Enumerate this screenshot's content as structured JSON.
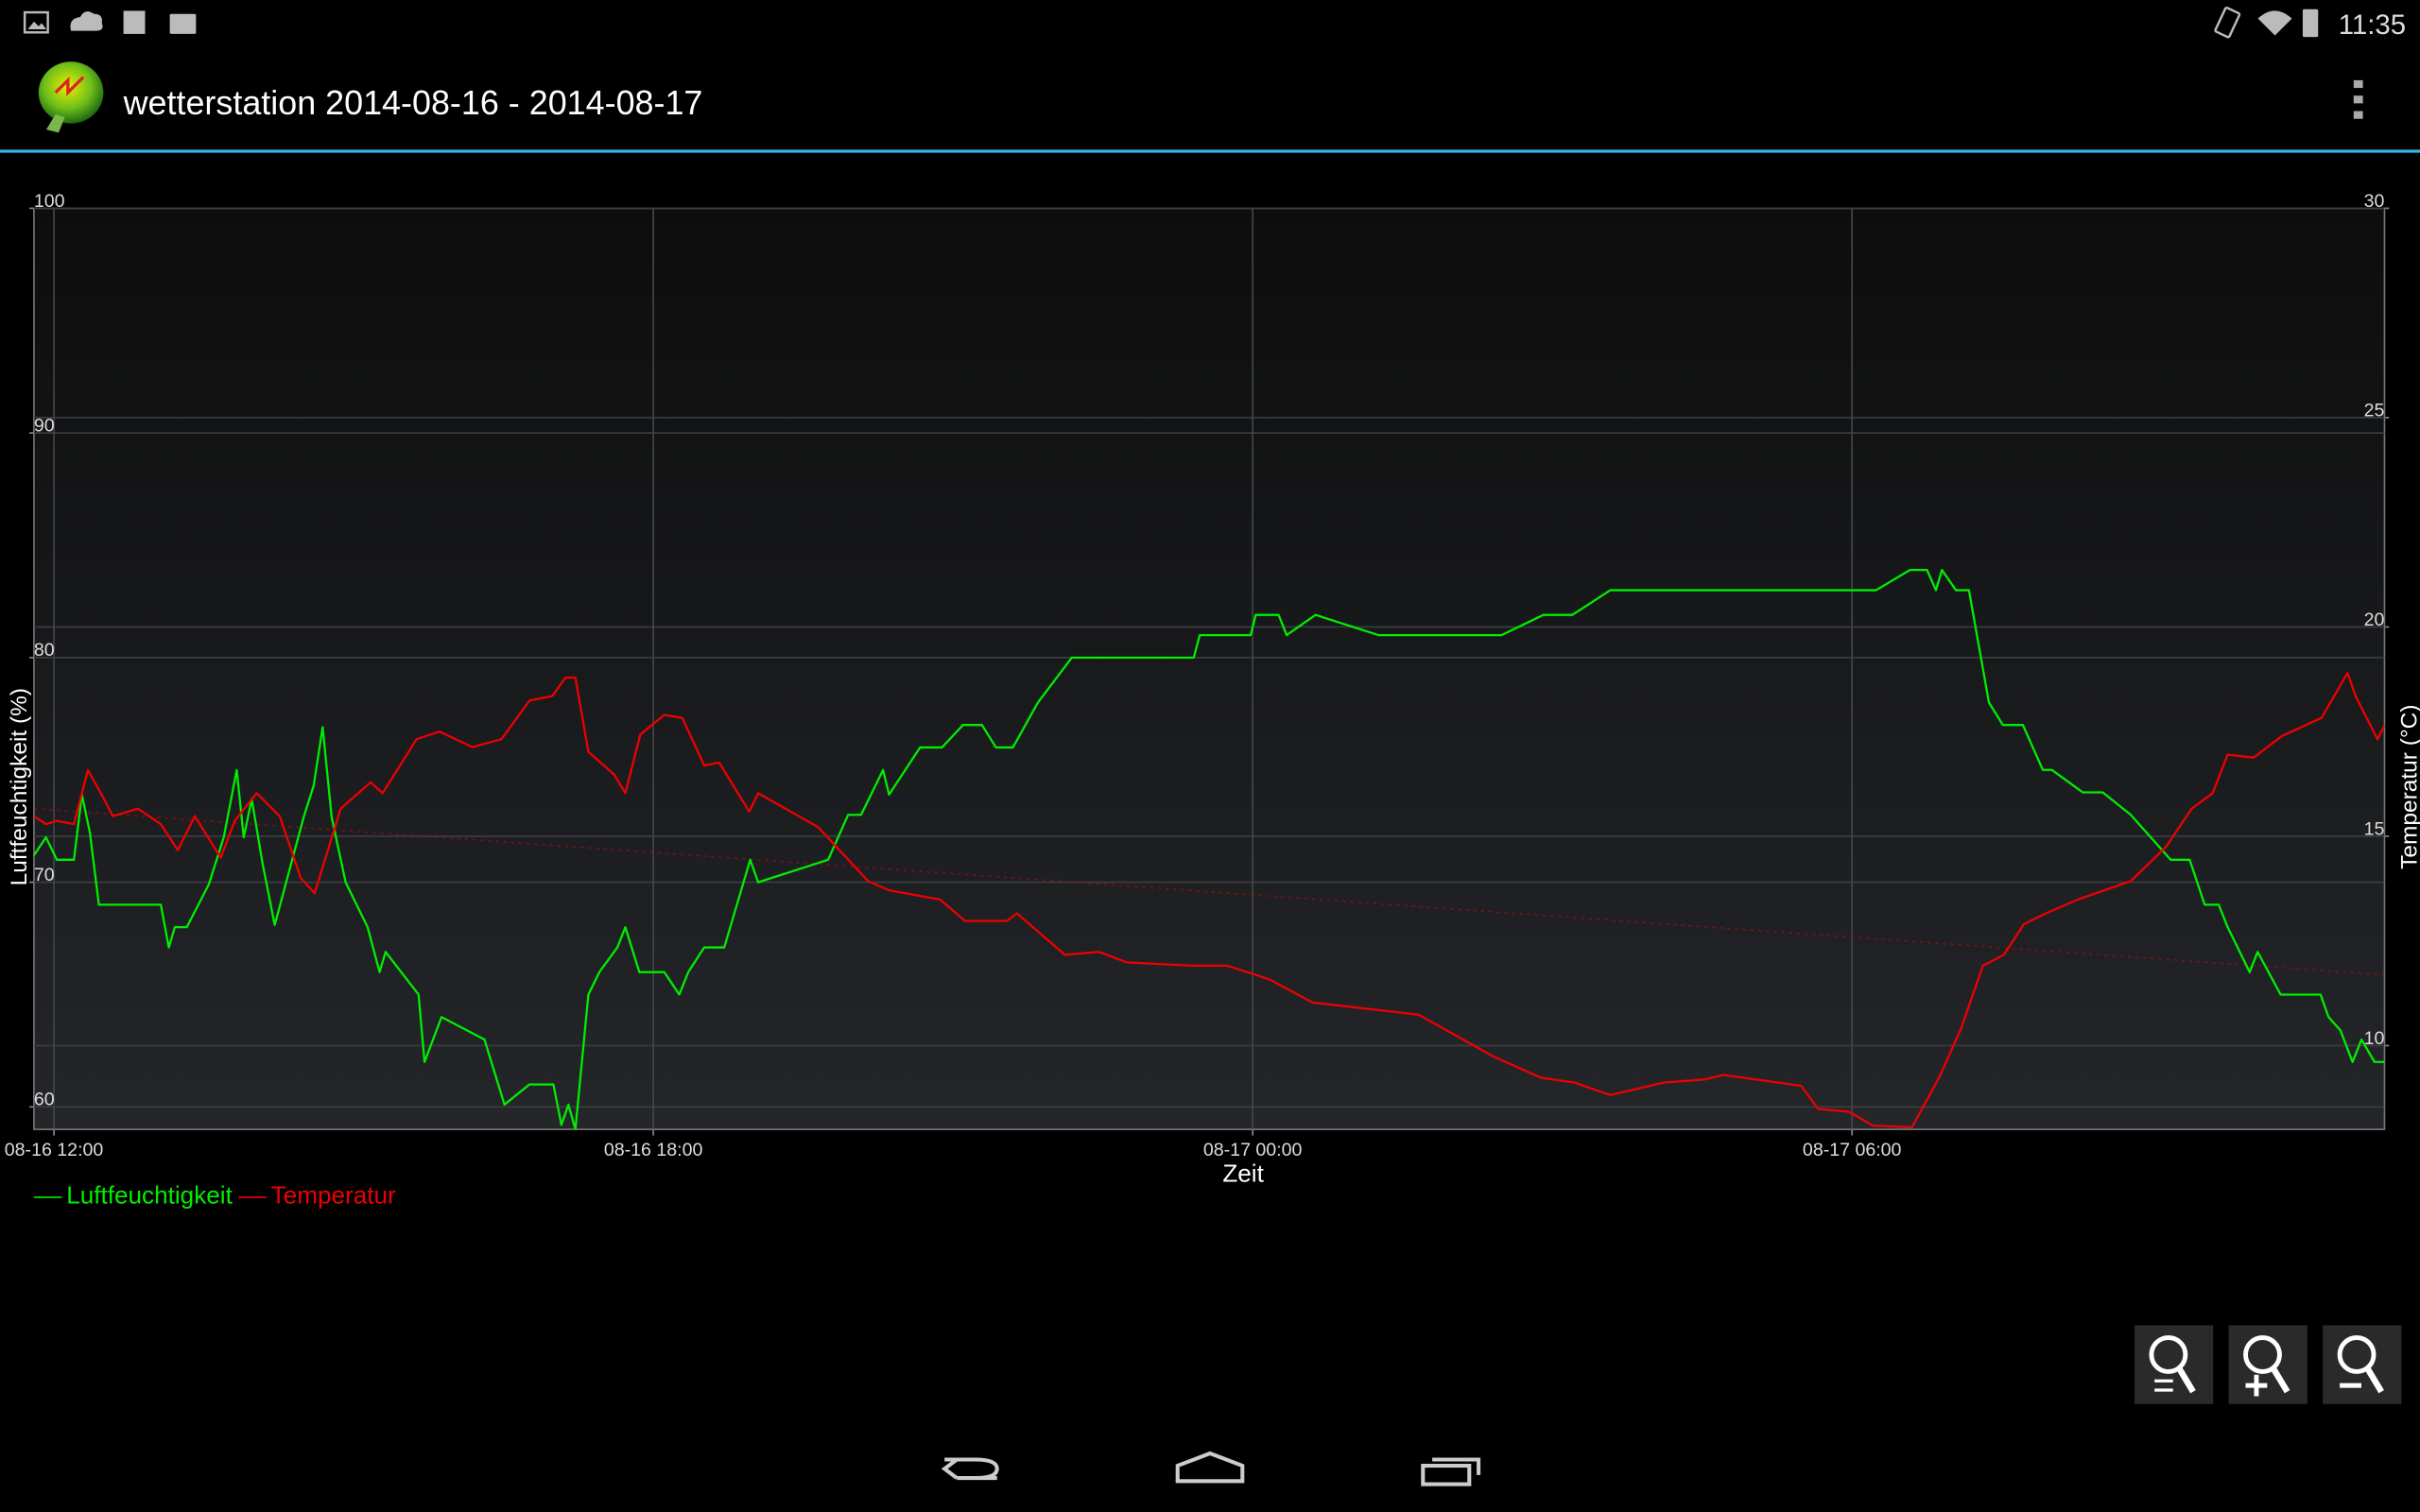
{
  "status_bar": {
    "time": "11:35"
  },
  "action_bar": {
    "title": "wetterstation 2014-08-16 - 2014-08-17"
  },
  "chart_data": {
    "type": "line",
    "xlabel": "Zeit",
    "ylabel": "Luftfeuchtigkeit (%)",
    "y2label": "Temperatur (°C)",
    "xlim": [
      11.8,
      35.33
    ],
    "xticks": [
      {
        "value": 12,
        "label": "08-16 12:00"
      },
      {
        "value": 18,
        "label": "08-16 18:00"
      },
      {
        "value": 24,
        "label": "08-17 00:00"
      },
      {
        "value": 30,
        "label": "08-17 06:00"
      }
    ],
    "ylim": [
      59,
      100
    ],
    "yticks": [
      60,
      70,
      80,
      90,
      100
    ],
    "y2lim": [
      8,
      30
    ],
    "y2ticks": [
      10,
      15,
      20,
      25,
      30
    ],
    "grid": true,
    "legend": "bottom-left",
    "series": [
      {
        "name": "Luftfeuchtigkeit",
        "color": "#00ee00",
        "x": [
          11.8,
          11.92,
          12.03,
          12.2,
          12.28,
          12.36,
          12.45,
          13.07,
          13.15,
          13.21,
          13.33,
          13.55,
          13.7,
          13.83,
          13.9,
          13.98,
          14.09,
          14.21,
          14.5,
          14.6,
          14.69,
          14.78,
          14.92,
          15.14,
          15.26,
          15.32,
          15.65,
          15.71,
          15.88,
          16.31,
          16.51,
          16.76,
          17.0,
          17.08,
          17.15,
          17.22,
          17.35,
          17.46,
          17.64,
          17.72,
          17.86,
          18.11,
          18.26,
          18.35,
          18.51,
          18.71,
          18.97,
          19.05,
          19.75,
          19.95,
          20.08,
          20.3,
          20.36,
          20.67,
          20.89,
          21.1,
          21.29,
          21.43,
          21.6,
          21.85,
          22.19,
          23.41,
          23.47,
          23.98,
          24.03,
          24.26,
          24.34,
          24.63,
          25.26,
          26.49,
          26.91,
          27.2,
          27.58,
          30.24,
          30.58,
          30.75,
          30.84,
          30.9,
          31.04,
          31.17,
          31.37,
          31.51,
          31.71,
          31.91,
          32.0,
          32.31,
          32.51,
          32.79,
          33.19,
          33.38,
          33.53,
          33.67,
          33.76,
          33.98,
          34.06,
          34.29,
          34.69,
          34.77,
          34.89,
          35.01,
          35.1,
          35.23,
          35.33
        ],
        "values": [
          71.2,
          72.0,
          71.0,
          71.0,
          73.9,
          72.2,
          69.0,
          69.0,
          67.1,
          68.0,
          68.0,
          69.9,
          72.0,
          75.0,
          72.0,
          73.7,
          70.8,
          68.1,
          72.9,
          74.3,
          76.9,
          72.9,
          70.0,
          68.0,
          66.0,
          66.9,
          65.0,
          62.0,
          64.0,
          63.0,
          60.1,
          61.0,
          61.0,
          59.2,
          60.1,
          59.0,
          65.0,
          66.0,
          67.1,
          68.0,
          66.0,
          66.0,
          65.0,
          66.0,
          67.1,
          67.1,
          71.0,
          70.0,
          71.0,
          73.0,
          73.0,
          75.0,
          73.9,
          76.0,
          76.0,
          77.0,
          77.0,
          76.0,
          76.0,
          78.0,
          80.0,
          80.0,
          81.0,
          81.0,
          81.9,
          81.9,
          81.0,
          81.9,
          81.0,
          81.0,
          81.9,
          81.9,
          83.0,
          83.0,
          83.9,
          83.9,
          83.0,
          83.9,
          83.0,
          83.0,
          78.0,
          77.0,
          77.0,
          75.0,
          75.0,
          74.0,
          74.0,
          73.0,
          71.0,
          71.0,
          69.0,
          69.0,
          68.0,
          66.0,
          66.9,
          65.0,
          65.0,
          64.0,
          63.4,
          62.0,
          63.0,
          62.0,
          62.0
        ]
      },
      {
        "name": "Temperatur",
        "color": "#ee0000",
        "axis": "y2",
        "x": [
          11.8,
          11.92,
          12.03,
          12.2,
          12.34,
          12.47,
          12.59,
          12.84,
          13.07,
          13.24,
          13.41,
          13.67,
          13.81,
          14.03,
          14.26,
          14.47,
          14.61,
          14.87,
          15.17,
          15.29,
          15.63,
          15.86,
          16.19,
          16.48,
          16.76,
          16.99,
          17.12,
          17.22,
          17.35,
          17.61,
          17.72,
          17.87,
          18.11,
          18.29,
          18.51,
          18.66,
          18.96,
          19.05,
          19.65,
          20.15,
          20.36,
          20.87,
          21.12,
          21.54,
          21.64,
          22.12,
          22.46,
          22.74,
          23.39,
          23.74,
          23.98,
          24.17,
          24.6,
          25.66,
          26.41,
          26.89,
          27.22,
          27.58,
          28.12,
          28.52,
          28.71,
          29.49,
          29.66,
          29.97,
          30.21,
          30.6,
          30.87,
          31.09,
          31.31,
          31.52,
          31.72,
          31.94,
          32.26,
          32.79,
          33.14,
          33.4,
          33.61,
          33.76,
          34.02,
          34.3,
          34.7,
          34.96,
          35.04,
          35.26,
          35.33
        ],
        "values": [
          15.48,
          15.29,
          15.37,
          15.29,
          16.58,
          16.03,
          15.48,
          15.66,
          15.29,
          14.67,
          15.48,
          14.49,
          15.37,
          16.03,
          15.48,
          14.01,
          13.64,
          15.66,
          16.29,
          16.03,
          17.32,
          17.5,
          17.13,
          17.32,
          18.24,
          18.35,
          18.79,
          18.79,
          17.02,
          16.47,
          16.03,
          17.43,
          17.9,
          17.83,
          16.69,
          16.76,
          15.59,
          16.03,
          15.22,
          13.93,
          13.71,
          13.49,
          12.98,
          12.98,
          13.16,
          12.17,
          12.24,
          11.99,
          11.91,
          11.91,
          11.73,
          11.58,
          11.03,
          10.74,
          9.74,
          9.23,
          9.12,
          8.82,
          9.12,
          9.19,
          9.3,
          9.04,
          8.49,
          8.42,
          8.09,
          8.05,
          9.23,
          10.4,
          11.91,
          12.17,
          12.9,
          13.16,
          13.49,
          13.93,
          14.74,
          15.66,
          16.03,
          16.95,
          16.88,
          17.39,
          17.83,
          18.9,
          18.35,
          17.32,
          17.65
        ]
      }
    ],
    "trend_line": {
      "color": "#ee0000",
      "axis": "y2",
      "x": [
        11.8,
        35.33
      ],
      "values": [
        15.66,
        11.69
      ]
    }
  }
}
